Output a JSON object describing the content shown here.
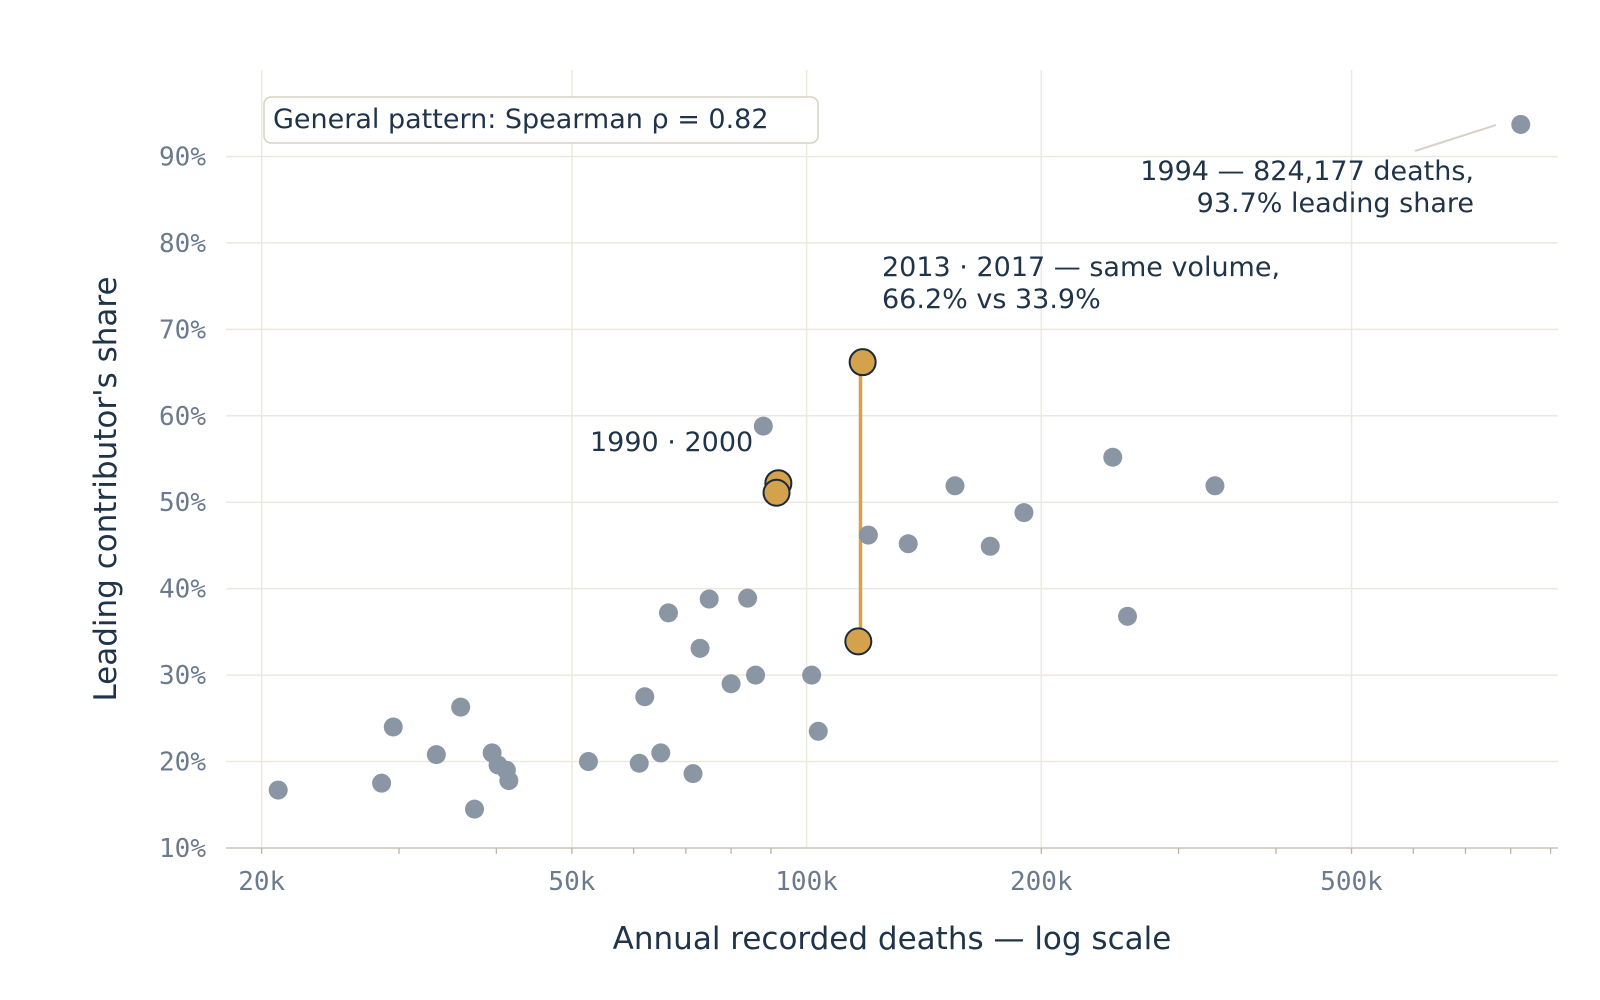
{
  "chart_data": {
    "type": "scatter",
    "title": "",
    "xlabel": "Annual recorded deaths — log scale",
    "ylabel": "Leading contributor's share",
    "x_scale": "log",
    "xlim": [
      18000,
      920000
    ],
    "ylim": [
      10,
      100
    ],
    "x_ticks": [
      {
        "value": 20000,
        "label": "20k"
      },
      {
        "value": 50000,
        "label": "50k"
      },
      {
        "value": 100000,
        "label": "100k"
      },
      {
        "value": 200000,
        "label": "200k"
      },
      {
        "value": 500000,
        "label": "500k"
      }
    ],
    "y_ticks": [
      {
        "value": 10,
        "label": "10%"
      },
      {
        "value": 20,
        "label": "20%"
      },
      {
        "value": 30,
        "label": "30%"
      },
      {
        "value": 40,
        "label": "40%"
      },
      {
        "value": 50,
        "label": "50%"
      },
      {
        "value": 60,
        "label": "60%"
      },
      {
        "value": 70,
        "label": "70%"
      },
      {
        "value": 80,
        "label": "80%"
      },
      {
        "value": 90,
        "label": "90%"
      }
    ],
    "grid": true,
    "colors": {
      "base_point": "#8a96a3",
      "highlight_point": "#d4a24c",
      "highlight_stroke": "#1b2a3a",
      "connector": "#d4a24c",
      "grid": "#ece9dc",
      "axis": "#d6d3c6",
      "text": "#1f3349",
      "tick_text": "#6b7a8c"
    },
    "points": [
      {
        "x": 21000,
        "y": 16.7
      },
      {
        "x": 28500,
        "y": 17.5
      },
      {
        "x": 29500,
        "y": 24.0
      },
      {
        "x": 33500,
        "y": 20.8
      },
      {
        "x": 36000,
        "y": 26.3
      },
      {
        "x": 37500,
        "y": 14.5
      },
      {
        "x": 39500,
        "y": 21.0
      },
      {
        "x": 40200,
        "y": 19.6
      },
      {
        "x": 41200,
        "y": 19.0
      },
      {
        "x": 41500,
        "y": 17.8
      },
      {
        "x": 52500,
        "y": 20.0
      },
      {
        "x": 61000,
        "y": 19.8
      },
      {
        "x": 62000,
        "y": 27.5
      },
      {
        "x": 65000,
        "y": 21.0
      },
      {
        "x": 66500,
        "y": 37.2
      },
      {
        "x": 71500,
        "y": 18.6
      },
      {
        "x": 73000,
        "y": 33.1
      },
      {
        "x": 75000,
        "y": 38.8
      },
      {
        "x": 80000,
        "y": 29.0
      },
      {
        "x": 84000,
        "y": 38.9
      },
      {
        "x": 86000,
        "y": 30.0
      },
      {
        "x": 88000,
        "y": 58.8
      },
      {
        "x": 101500,
        "y": 30.0
      },
      {
        "x": 103500,
        "y": 23.5
      },
      {
        "x": 120000,
        "y": 46.2
      },
      {
        "x": 135000,
        "y": 45.2
      },
      {
        "x": 155000,
        "y": 51.9
      },
      {
        "x": 172000,
        "y": 44.9
      },
      {
        "x": 190000,
        "y": 48.8
      },
      {
        "x": 247000,
        "y": 55.2
      },
      {
        "x": 258000,
        "y": 36.8
      },
      {
        "x": 334000,
        "y": 51.9
      },
      {
        "x": 824177,
        "y": 93.7
      }
    ],
    "highlighted": [
      {
        "year": "1990",
        "x": 92000,
        "y": 52.2
      },
      {
        "year": "2000",
        "x": 91500,
        "y": 51.1
      },
      {
        "year": "2013",
        "x": 118000,
        "y": 66.2
      },
      {
        "year": "2017",
        "x": 116500,
        "y": 33.9
      }
    ],
    "connector": {
      "from": "2013",
      "to": "2017"
    },
    "annotations": {
      "pattern": "General pattern: Spearman ρ = 0.82",
      "pair_label": "1990 · 2000",
      "same_volume_line1": "2013 · 2017 — same volume,",
      "same_volume_line2": "66.2% vs 33.9%",
      "outlier_line1": "1994 — 824,177 deaths,",
      "outlier_line2": "93.7% leading share"
    }
  }
}
